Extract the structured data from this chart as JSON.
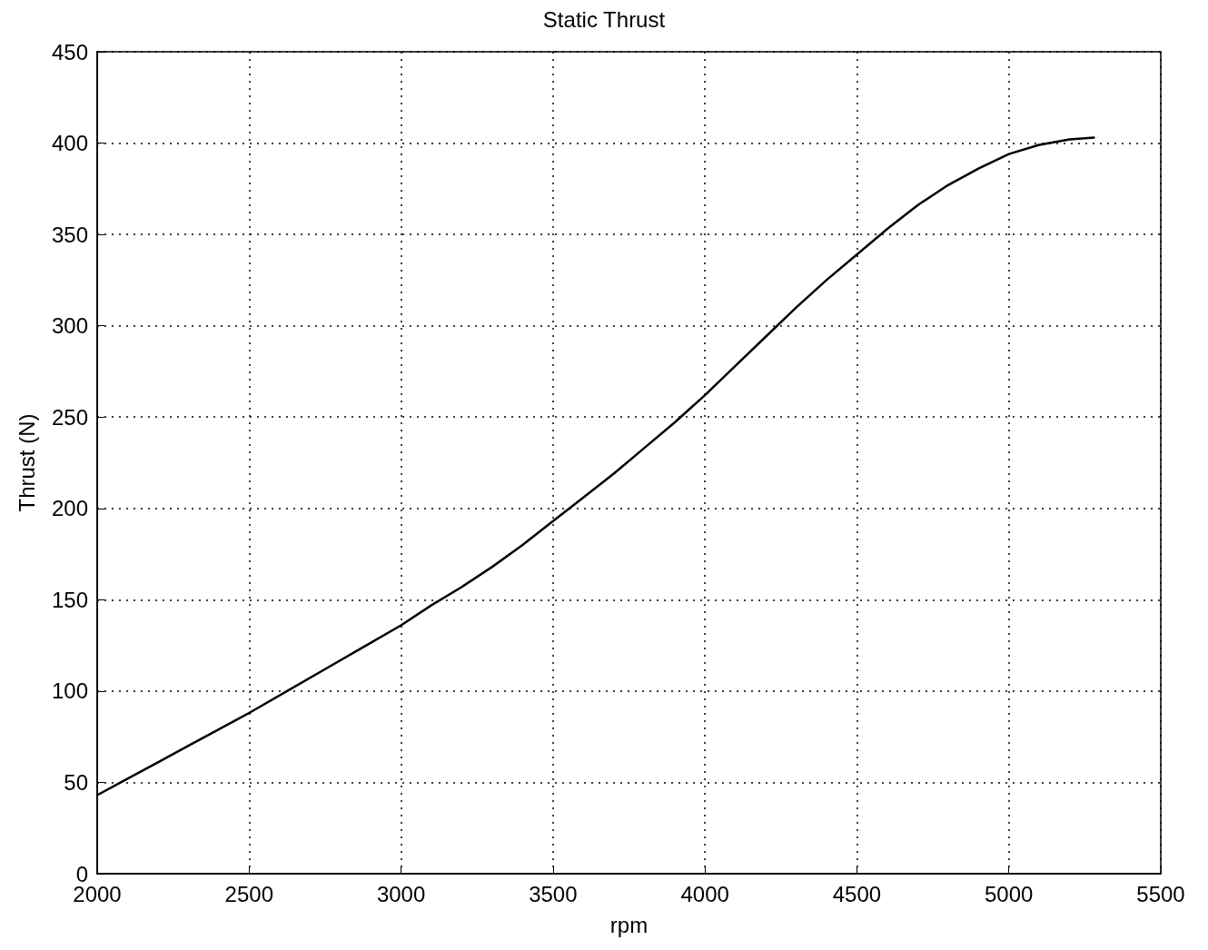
{
  "chart_data": {
    "type": "line",
    "title": "Static Thrust",
    "xlabel": "rpm",
    "ylabel": "Thrust (N)",
    "series": [
      {
        "color": "#000000",
        "x": [
          2000,
          2100,
          2200,
          2300,
          2400,
          2500,
          2625,
          2750,
          2875,
          3000,
          3100,
          3200,
          3300,
          3400,
          3500,
          3600,
          3700,
          3800,
          3900,
          4000,
          4100,
          4200,
          4300,
          4400,
          4500,
          4600,
          4700,
          4800,
          4900,
          5000,
          5100,
          5200,
          5280
        ],
        "values": [
          43,
          52,
          61,
          70,
          79,
          88,
          100,
          112,
          124,
          136,
          147,
          157,
          168,
          180,
          193,
          206,
          219,
          233,
          247,
          262,
          278,
          294,
          310,
          325,
          339,
          353,
          366,
          377,
          386,
          394,
          399,
          402,
          403
        ]
      }
    ],
    "xlim": [
      2000,
      5500
    ],
    "xticks": [
      2000,
      2500,
      3000,
      3500,
      4000,
      4500,
      5000,
      5500
    ],
    "ylim": [
      0,
      450
    ],
    "yticks": [
      0,
      50,
      100,
      150,
      200,
      250,
      300,
      350,
      400,
      450
    ],
    "grid": true,
    "marker": "none",
    "line_style": "solid"
  }
}
